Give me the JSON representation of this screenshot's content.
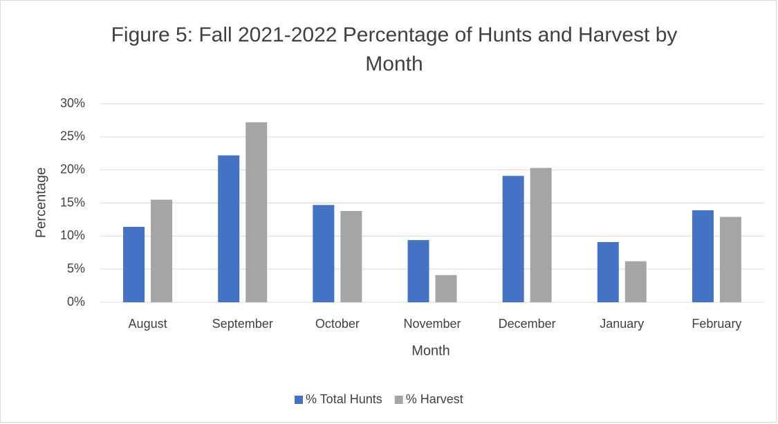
{
  "chart_data": {
    "type": "bar",
    "title": "Figure 5: Fall 2021-2022 Percentage of Hunts and Harvest by Month",
    "xlabel": "Month",
    "ylabel": "Percentage",
    "categories": [
      "August",
      "September",
      "October",
      "November",
      "December",
      "January",
      "February"
    ],
    "series": [
      {
        "name": "% Total Hunts",
        "color": "#4472c4",
        "values": [
          11.4,
          22.2,
          14.7,
          9.4,
          19.1,
          9.1,
          13.9
        ]
      },
      {
        "name": "% Harvest",
        "color": "#a5a5a5",
        "values": [
          15.5,
          27.2,
          13.8,
          4.1,
          20.3,
          6.2,
          12.9
        ]
      }
    ],
    "ylim": [
      0,
      30
    ],
    "yticks": [
      {
        "value": 0,
        "label": "0%"
      },
      {
        "value": 5,
        "label": "5%"
      },
      {
        "value": 10,
        "label": "10%"
      },
      {
        "value": 15,
        "label": "15%"
      },
      {
        "value": 20,
        "label": "20%"
      },
      {
        "value": 25,
        "label": "25%"
      },
      {
        "value": 30,
        "label": "30%"
      }
    ],
    "grid": true,
    "legend": "bottom"
  }
}
